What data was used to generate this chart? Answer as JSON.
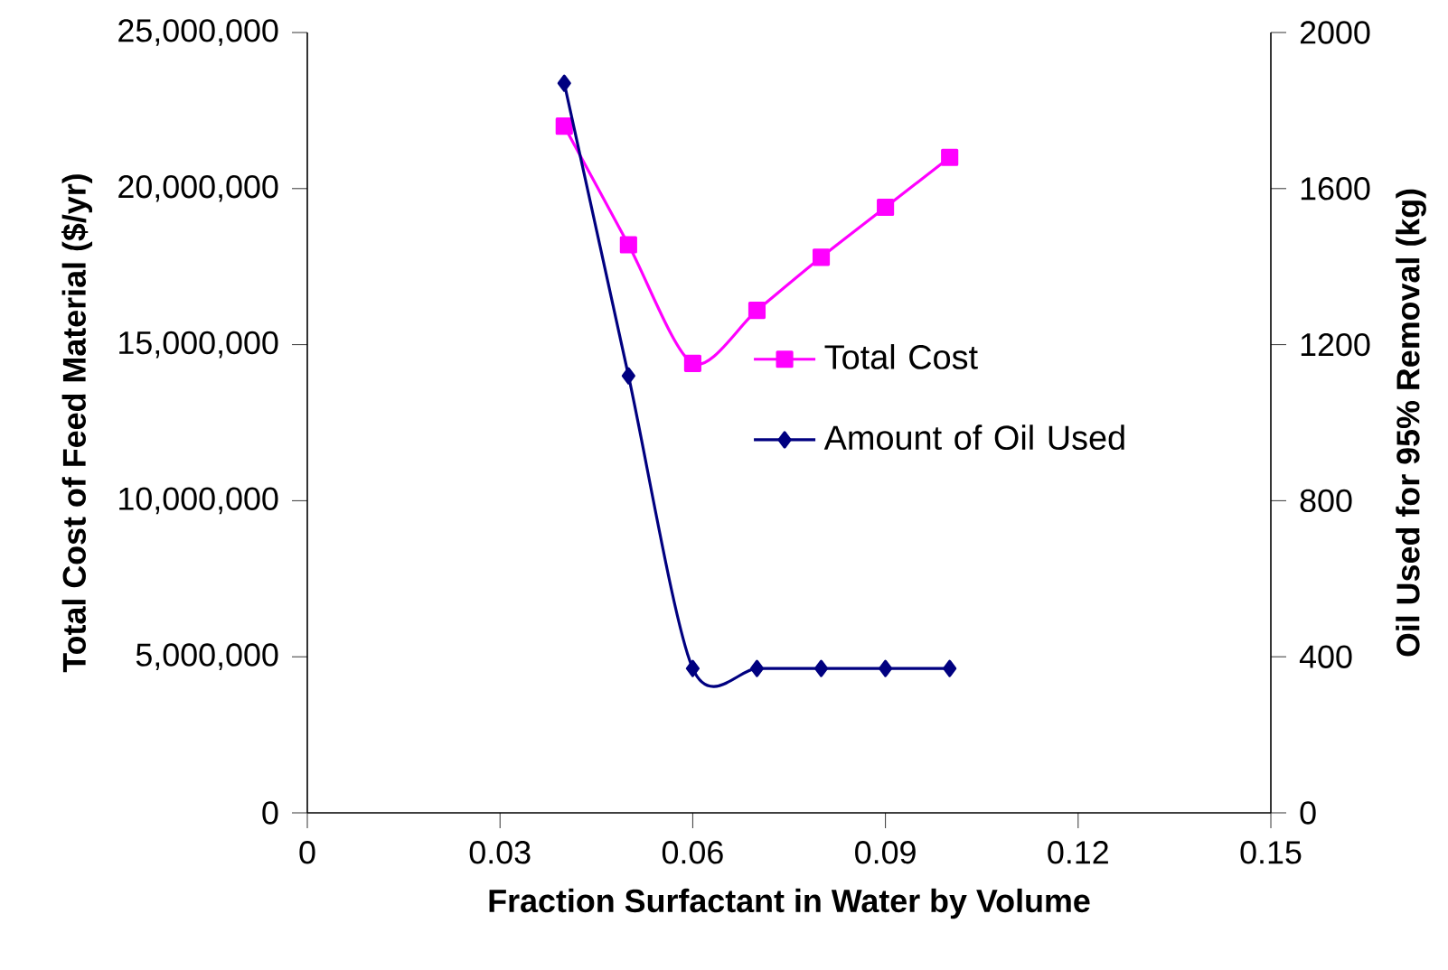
{
  "chart_data": {
    "type": "line",
    "xlabel": "Fraction Surfactant in Water by Volume",
    "ylabel": "Total Cost of Feed Material ($/yr)",
    "y2label": "Oil Used for 95% Removal (kg)",
    "x": [
      0.04,
      0.05,
      0.06,
      0.07,
      0.08,
      0.09,
      0.1
    ],
    "series": [
      {
        "name": "Total Cost",
        "color": "#ff00ff",
        "marker": "square",
        "values": [
          22000000,
          18200000,
          14400000,
          16100000,
          17800000,
          19400000,
          21000000
        ]
      },
      {
        "name": "Amount of Oil Used",
        "color": "#000080",
        "marker": "diamond",
        "axis": "y2",
        "values": [
          1870,
          1120,
          370,
          370,
          370,
          370,
          370
        ]
      }
    ],
    "xlim": [
      0,
      0.15
    ],
    "xticks": [
      0,
      0.03,
      0.06,
      0.09,
      0.12,
      0.15
    ],
    "ylim": [
      0,
      25000000
    ],
    "yticks": [
      {
        "value": 0,
        "label": "0"
      },
      {
        "value": 5000000,
        "label": "5,000,000"
      },
      {
        "value": 10000000,
        "label": "10,000,000"
      },
      {
        "value": 15000000,
        "label": "15,000,000"
      },
      {
        "value": 20000000,
        "label": "20,000,000"
      },
      {
        "value": 25000000,
        "label": "25,000,000"
      }
    ],
    "y2lim": [
      0,
      2000
    ],
    "y2ticks": [
      0,
      400,
      800,
      1200,
      1600,
      2000
    ],
    "grid": false,
    "legend": "right"
  }
}
